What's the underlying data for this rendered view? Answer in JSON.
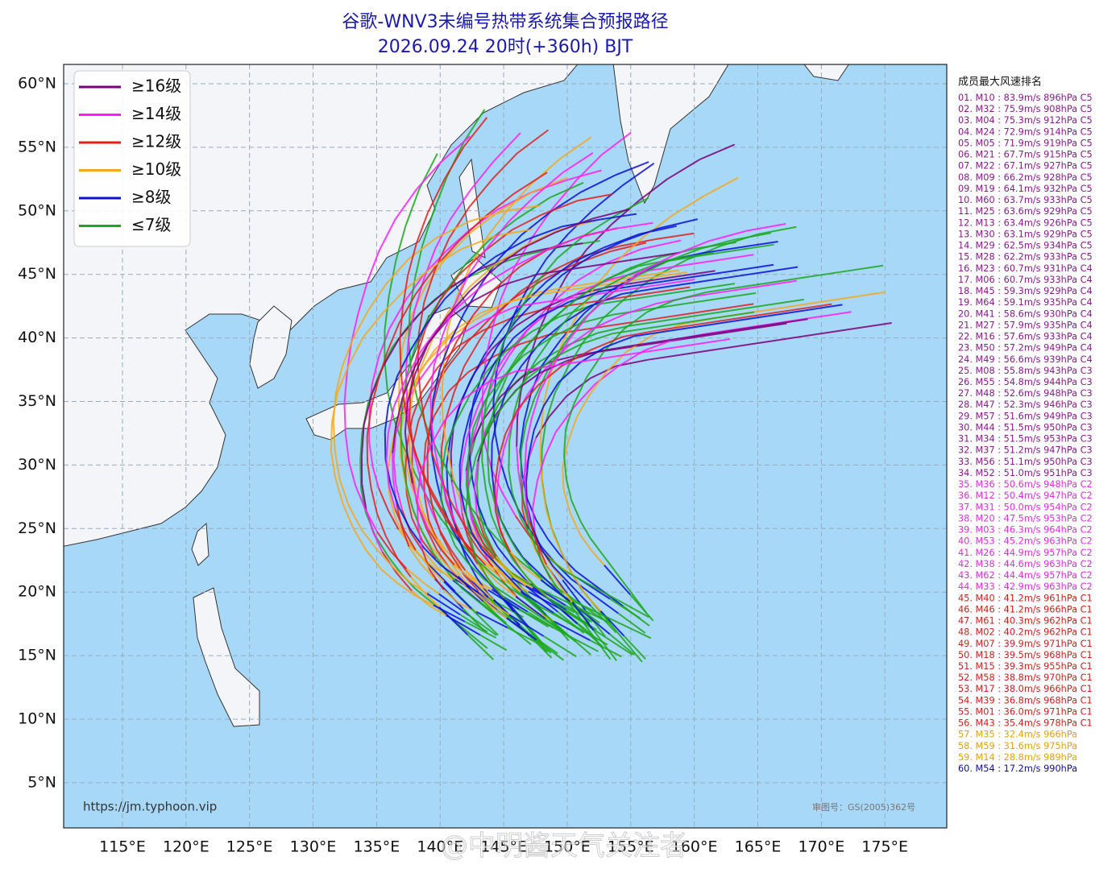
{
  "header": {
    "title": "谷歌-WNV3未编号热带系统集合预报路径",
    "subtitle": "2026.09.24 20时(+360h) BJT"
  },
  "map": {
    "xticks": [
      {
        "value": 115,
        "label": "115°E"
      },
      {
        "value": 120,
        "label": "120°E"
      },
      {
        "value": 125,
        "label": "125°E"
      },
      {
        "value": 130,
        "label": "130°E"
      },
      {
        "value": 135,
        "label": "135°E"
      },
      {
        "value": 140,
        "label": "140°E"
      },
      {
        "value": 145,
        "label": "145°E"
      },
      {
        "value": 150,
        "label": "150°E"
      },
      {
        "value": 155,
        "label": "155°E"
      },
      {
        "value": 160,
        "label": "160°E"
      },
      {
        "value": 165,
        "label": "165°E"
      },
      {
        "value": 170,
        "label": "170°E"
      },
      {
        "value": 175,
        "label": "175°E"
      }
    ],
    "yticks": [
      {
        "value": 60,
        "label": "60°N"
      },
      {
        "value": 55,
        "label": "55°N"
      },
      {
        "value": 50,
        "label": "50°N"
      },
      {
        "value": 45,
        "label": "45°N"
      },
      {
        "value": 40,
        "label": "40°N"
      },
      {
        "value": 35,
        "label": "35°N"
      },
      {
        "value": 30,
        "label": "30°N"
      },
      {
        "value": 25,
        "label": "25°N"
      },
      {
        "value": 20,
        "label": "20°N"
      },
      {
        "value": 15,
        "label": "15°N"
      },
      {
        "value": 10,
        "label": "10°N"
      },
      {
        "value": 5,
        "label": "5°N"
      }
    ],
    "legend": [
      {
        "label": "≥16级",
        "color": "#7b007b"
      },
      {
        "label": "≥14级",
        "color": "#ff1cff"
      },
      {
        "label": "≥12级",
        "color": "#e0201c"
      },
      {
        "label": "≥10级",
        "color": "#f5a81c"
      },
      {
        "label": "≥8级",
        "color": "#0a10d8"
      },
      {
        "label": "≤7级",
        "color": "#1ca81c"
      }
    ]
  },
  "ranking": {
    "title": "成员最大风速排名",
    "entries": [
      {
        "text": "01. M10 : 83.9m/s 896hPa C5",
        "color": "#8b1a8b"
      },
      {
        "text": "02. M32 : 75.9m/s 908hPa C5",
        "color": "#8b1a8b"
      },
      {
        "text": "03. M04 : 75.3m/s 912hPa C5",
        "color": "#8b1a8b"
      },
      {
        "text": "04. M24 : 72.9m/s 914hPa C5",
        "color": "#8b1a8b"
      },
      {
        "text": "05. M05 : 71.9m/s 919hPa C5",
        "color": "#8b1a8b"
      },
      {
        "text": "06. M21 : 67.7m/s 915hPa C5",
        "color": "#8b1a8b"
      },
      {
        "text": "07. M22 : 67.1m/s 927hPa C5",
        "color": "#8b1a8b"
      },
      {
        "text": "08. M09 : 66.2m/s 928hPa C5",
        "color": "#8b1a8b"
      },
      {
        "text": "09. M19 : 64.1m/s 932hPa C5",
        "color": "#8b1a8b"
      },
      {
        "text": "10. M60 : 63.7m/s 933hPa C5",
        "color": "#8b1a8b"
      },
      {
        "text": "11. M25 : 63.6m/s 929hPa C5",
        "color": "#8b1a8b"
      },
      {
        "text": "12. M13 : 63.4m/s 926hPa C5",
        "color": "#8b1a8b"
      },
      {
        "text": "13. M30 : 63.1m/s 929hPa C5",
        "color": "#8b1a8b"
      },
      {
        "text": "14. M29 : 62.5m/s 934hPa C5",
        "color": "#8b1a8b"
      },
      {
        "text": "15. M28 : 62.2m/s 933hPa C5",
        "color": "#8b1a8b"
      },
      {
        "text": "16. M23 : 60.7m/s 931hPa C4",
        "color": "#8b1a8b"
      },
      {
        "text": "17. M06 : 60.7m/s 933hPa C4",
        "color": "#8b1a8b"
      },
      {
        "text": "18. M45 : 59.3m/s 929hPa C4",
        "color": "#8b1a8b"
      },
      {
        "text": "19. M64 : 59.1m/s 935hPa C4",
        "color": "#8b1a8b"
      },
      {
        "text": "20. M41 : 58.6m/s 930hPa C4",
        "color": "#8b1a8b"
      },
      {
        "text": "21. M27 : 57.9m/s 935hPa C4",
        "color": "#8b1a8b"
      },
      {
        "text": "22. M16 : 57.6m/s 933hPa C4",
        "color": "#8b1a8b"
      },
      {
        "text": "23. M50 : 57.2m/s 949hPa C4",
        "color": "#8b1a8b"
      },
      {
        "text": "24. M49 : 56.6m/s 939hPa C4",
        "color": "#8b1a8b"
      },
      {
        "text": "25. M08 : 55.8m/s 943hPa C3",
        "color": "#8b1a8b"
      },
      {
        "text": "26. M55 : 54.8m/s 944hPa C3",
        "color": "#8b1a8b"
      },
      {
        "text": "27. M48 : 52.6m/s 948hPa C3",
        "color": "#8b1a8b"
      },
      {
        "text": "28. M47 : 52.3m/s 946hPa C3",
        "color": "#8b1a8b"
      },
      {
        "text": "29. M57 : 51.6m/s 949hPa C3",
        "color": "#8b1a8b"
      },
      {
        "text": "30. M44 : 51.5m/s 950hPa C3",
        "color": "#8b1a8b"
      },
      {
        "text": "31. M34 : 51.5m/s 953hPa C3",
        "color": "#8b1a8b"
      },
      {
        "text": "32. M37 : 51.2m/s 947hPa C3",
        "color": "#8b1a8b"
      },
      {
        "text": "33. M56 : 51.1m/s 950hPa C3",
        "color": "#8b1a8b"
      },
      {
        "text": "34. M52 : 51.0m/s 951hPa C3",
        "color": "#8b1a8b"
      },
      {
        "text": "35. M36 : 50.6m/s 948hPa C2",
        "color": "#e02ee0"
      },
      {
        "text": "36. M12 : 50.4m/s 947hPa C2",
        "color": "#e02ee0"
      },
      {
        "text": "37. M31 : 50.0m/s 954hPa C2",
        "color": "#e02ee0"
      },
      {
        "text": "38. M20 : 47.5m/s 953hPa C2",
        "color": "#e02ee0"
      },
      {
        "text": "39. M03 : 46.3m/s 964hPa C2",
        "color": "#e02ee0"
      },
      {
        "text": "40. M53 : 45.2m/s 963hPa C2",
        "color": "#e02ee0"
      },
      {
        "text": "41. M26 : 44.9m/s 957hPa C2",
        "color": "#e02ee0"
      },
      {
        "text": "42. M38 : 44.6m/s 963hPa C2",
        "color": "#e02ee0"
      },
      {
        "text": "43. M62 : 44.4m/s 957hPa C2",
        "color": "#e02ee0"
      },
      {
        "text": "44. M33 : 42.9m/s 963hPa C2",
        "color": "#e02ee0"
      },
      {
        "text": "45. M40 : 41.2m/s 961hPa C1",
        "color": "#d0201c"
      },
      {
        "text": "46. M46 : 41.2m/s 966hPa C1",
        "color": "#d0201c"
      },
      {
        "text": "47. M61 : 40.3m/s 962hPa C1",
        "color": "#d0201c"
      },
      {
        "text": "48. M02 : 40.2m/s 962hPa C1",
        "color": "#d0201c"
      },
      {
        "text": "49. M07 : 39.9m/s 971hPa C1",
        "color": "#d0201c"
      },
      {
        "text": "50. M18 : 39.5m/s 968hPa C1",
        "color": "#d0201c"
      },
      {
        "text": "51. M15 : 39.3m/s 955hPa C1",
        "color": "#d0201c"
      },
      {
        "text": "52. M58 : 38.8m/s 970hPa C1",
        "color": "#d0201c"
      },
      {
        "text": "53. M17 : 38.0m/s 966hPa C1",
        "color": "#d0201c"
      },
      {
        "text": "54. M39 : 36.8m/s 968hPa C1",
        "color": "#d0201c"
      },
      {
        "text": "55. M01 : 36.0m/s 971hPa C1",
        "color": "#d0201c"
      },
      {
        "text": "56. M43 : 35.4m/s 978hPa C1",
        "color": "#d0201c"
      },
      {
        "text": "57. M35 : 32.4m/s 966hPa",
        "color": "#e8a010"
      },
      {
        "text": "58. M59 : 31.6m/s 975hPa",
        "color": "#e8a010"
      },
      {
        "text": "59. M14 : 28.8m/s 989hPa",
        "color": "#e8a010"
      },
      {
        "text": "60. M54 : 17.2m/s 990hPa",
        "color": "#10108f"
      }
    ]
  },
  "footer": {
    "url": "https://jm.typhoon.vip",
    "approval": "审图号：GS(2005)362号",
    "watermark": "@中明酱天气关注者"
  }
}
